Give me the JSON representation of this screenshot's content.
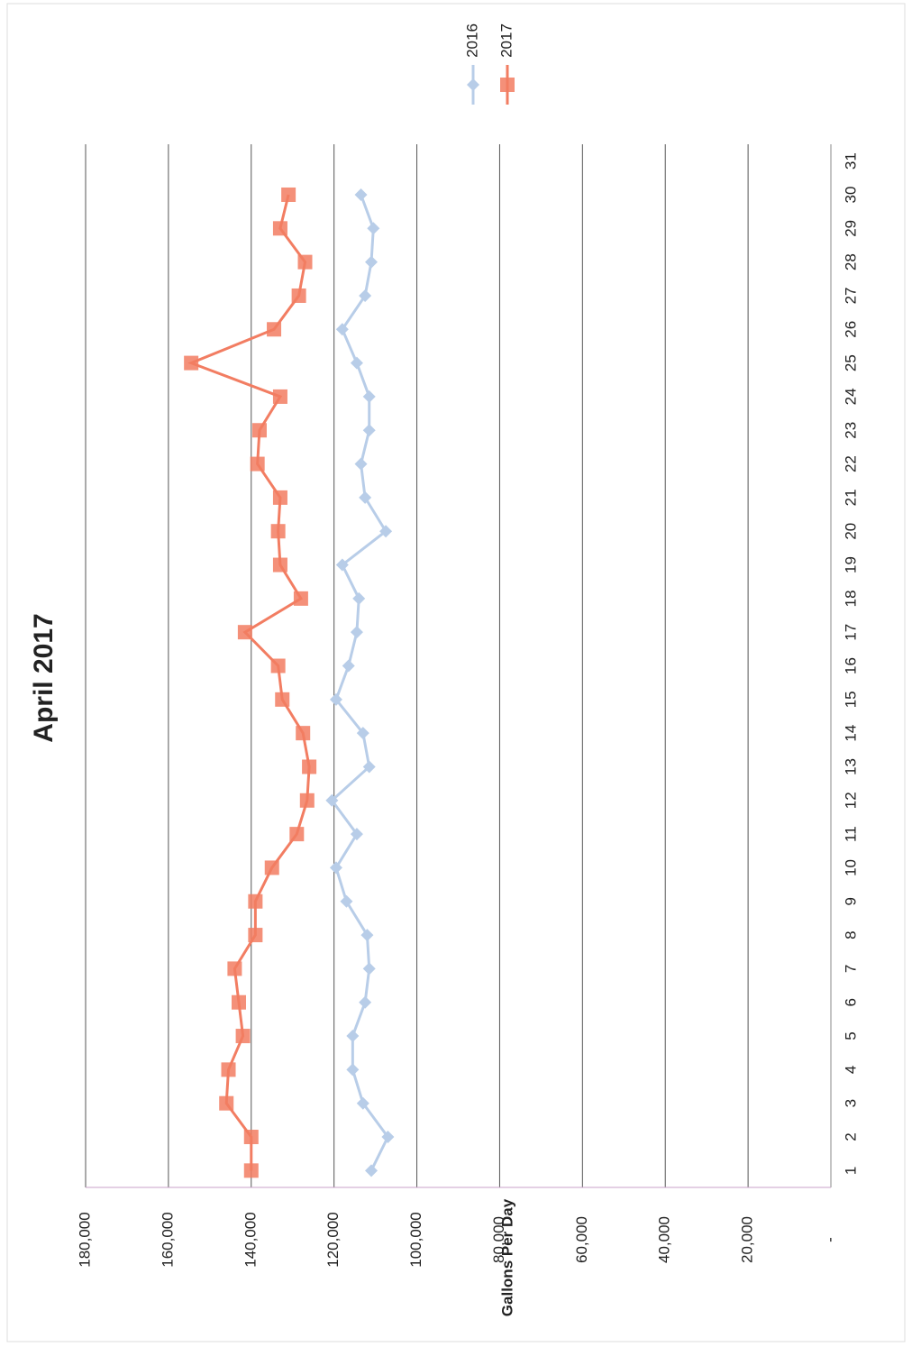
{
  "chart_data": {
    "type": "line",
    "title": "April 2017",
    "y_label": "Gallons Per Day",
    "categories": [
      "1",
      "2",
      "3",
      "4",
      "5",
      "6",
      "7",
      "8",
      "9",
      "10",
      "11",
      "12",
      "13",
      "14",
      "15",
      "16",
      "17",
      "18",
      "19",
      "20",
      "21",
      "22",
      "23",
      "24",
      "25",
      "26",
      "27",
      "28",
      "29",
      "30",
      "31"
    ],
    "series": [
      {
        "name": "2016",
        "color": "#b8cde8",
        "marker": "diamond",
        "values": [
          111000,
          107000,
          113000,
          115500,
          115500,
          112500,
          111500,
          112000,
          117000,
          119500,
          114500,
          120500,
          111500,
          113000,
          119500,
          116500,
          114500,
          114000,
          118000,
          107500,
          112500,
          113500,
          111500,
          111500,
          114500,
          118000,
          112500,
          111000,
          110500,
          113500,
          null
        ]
      },
      {
        "name": "2017",
        "color": "#f27d62",
        "marker": "square",
        "values": [
          140000,
          140000,
          146000,
          145500,
          142000,
          143000,
          144000,
          139000,
          139000,
          135000,
          129000,
          126500,
          126000,
          127500,
          132500,
          133500,
          141500,
          128000,
          133000,
          133500,
          133000,
          138500,
          138000,
          133000,
          154500,
          134500,
          128500,
          127000,
          133000,
          131000,
          null
        ]
      }
    ],
    "ylim": [
      0,
      180000
    ],
    "yticks": [
      {
        "value": 0,
        "label": "-"
      },
      {
        "value": 20000,
        "label": "20,000"
      },
      {
        "value": 40000,
        "label": "40,000"
      },
      {
        "value": 60000,
        "label": "60,000"
      },
      {
        "value": 80000,
        "label": "80,000"
      },
      {
        "value": 100000,
        "label": "100,000"
      },
      {
        "value": 120000,
        "label": "120,000"
      },
      {
        "value": 140000,
        "label": "140,000"
      },
      {
        "value": 160000,
        "label": "160,000"
      },
      {
        "value": 180000,
        "label": "180,000"
      }
    ],
    "grid": true,
    "legend": "top-right"
  }
}
